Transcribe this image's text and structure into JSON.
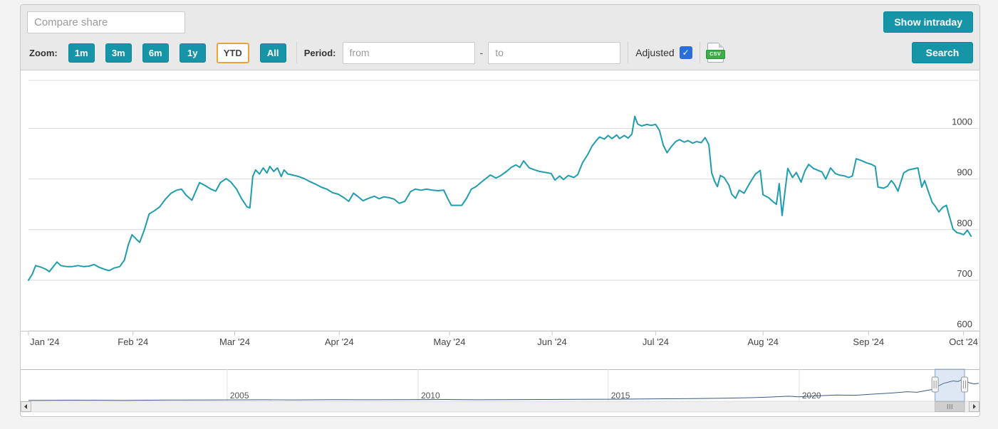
{
  "header": {
    "compare_placeholder": "Compare share",
    "show_intraday_label": "Show intraday"
  },
  "controls": {
    "zoom_label": "Zoom:",
    "zoom_buttons": [
      {
        "label": "1m",
        "selected": false
      },
      {
        "label": "3m",
        "selected": false
      },
      {
        "label": "6m",
        "selected": false
      },
      {
        "label": "1y",
        "selected": false
      },
      {
        "label": "YTD",
        "selected": true
      },
      {
        "label": "All",
        "selected": false
      }
    ],
    "period_label": "Period:",
    "from_placeholder": "from",
    "to_placeholder": "to",
    "range_separator": "-",
    "adjusted_label": "Adjusted",
    "adjusted_checked": true,
    "csv_icon_label": "CSV",
    "search_label": "Search"
  },
  "colors": {
    "accent_teal": "#1795a8",
    "ytd_border": "#e8a33c",
    "price_line": "#1f9daf",
    "gridline": "#d9d9d9",
    "axis_line": "#c6c6c6",
    "axis_text": "#444444",
    "nav_line": "#3b5a82",
    "nav_selection_fill": "rgba(125,165,215,0.25)",
    "nav_selection_edge": "#7f9fca",
    "checkbox_blue": "#2a6ed9",
    "csv_green": "#3fae49"
  },
  "chart_data": {
    "type": "line",
    "title": "",
    "xlabel": "",
    "ylabel": "",
    "ylim": [
      600,
      1095
    ],
    "y_ticks": [
      600,
      700,
      800,
      900,
      1000
    ],
    "x_ticks": [
      {
        "label": "Jan '24",
        "f": 0.0
      },
      {
        "label": "Feb '24",
        "f": 0.11
      },
      {
        "label": "Mar '24",
        "f": 0.217
      },
      {
        "label": "Apr '24",
        "f": 0.327
      },
      {
        "label": "May '24",
        "f": 0.443
      },
      {
        "label": "Jun '24",
        "f": 0.551
      },
      {
        "label": "Jul '24",
        "f": 0.66
      },
      {
        "label": "Aug '24",
        "f": 0.773
      },
      {
        "label": "Sep '24",
        "f": 0.884
      },
      {
        "label": "Oct '24",
        "f": 0.984
      }
    ],
    "series": [
      {
        "name": "share-price-ytd-2024",
        "color": "#1f9daf",
        "points": [
          [
            0.0,
            700
          ],
          [
            0.004,
            712
          ],
          [
            0.0075,
            729
          ],
          [
            0.013,
            726
          ],
          [
            0.019,
            721
          ],
          [
            0.022,
            717
          ],
          [
            0.03,
            736
          ],
          [
            0.034,
            729
          ],
          [
            0.04,
            727
          ],
          [
            0.046,
            727
          ],
          [
            0.052,
            729
          ],
          [
            0.058,
            727
          ],
          [
            0.064,
            728
          ],
          [
            0.069,
            731
          ],
          [
            0.075,
            725
          ],
          [
            0.081,
            721
          ],
          [
            0.085,
            719
          ],
          [
            0.09,
            724
          ],
          [
            0.096,
            727
          ],
          [
            0.101,
            740
          ],
          [
            0.105,
            770
          ],
          [
            0.109,
            790
          ],
          [
            0.114,
            780
          ],
          [
            0.117,
            775
          ],
          [
            0.122,
            800
          ],
          [
            0.127,
            831
          ],
          [
            0.133,
            838
          ],
          [
            0.138,
            845
          ],
          [
            0.144,
            860
          ],
          [
            0.15,
            872
          ],
          [
            0.156,
            878
          ],
          [
            0.161,
            880
          ],
          [
            0.166,
            868
          ],
          [
            0.172,
            858
          ],
          [
            0.177,
            880
          ],
          [
            0.18,
            893
          ],
          [
            0.186,
            887
          ],
          [
            0.192,
            880
          ],
          [
            0.197,
            876
          ],
          [
            0.202,
            893
          ],
          [
            0.208,
            901
          ],
          [
            0.213,
            894
          ],
          [
            0.219,
            880
          ],
          [
            0.224,
            862
          ],
          [
            0.23,
            845
          ],
          [
            0.233,
            843
          ],
          [
            0.236,
            905
          ],
          [
            0.239,
            918
          ],
          [
            0.243,
            910
          ],
          [
            0.247,
            922
          ],
          [
            0.251,
            912
          ],
          [
            0.254,
            925
          ],
          [
            0.258,
            915
          ],
          [
            0.262,
            922
          ],
          [
            0.266,
            905
          ],
          [
            0.269,
            918
          ],
          [
            0.273,
            910
          ],
          [
            0.278,
            908
          ],
          [
            0.284,
            905
          ],
          [
            0.29,
            901
          ],
          [
            0.296,
            895
          ],
          [
            0.302,
            890
          ],
          [
            0.308,
            884
          ],
          [
            0.314,
            880
          ],
          [
            0.32,
            873
          ],
          [
            0.326,
            870
          ],
          [
            0.332,
            863
          ],
          [
            0.337,
            856
          ],
          [
            0.342,
            872
          ],
          [
            0.347,
            865
          ],
          [
            0.352,
            857
          ],
          [
            0.358,
            862
          ],
          [
            0.364,
            866
          ],
          [
            0.369,
            861
          ],
          [
            0.374,
            865
          ],
          [
            0.38,
            863
          ],
          [
            0.385,
            860
          ],
          [
            0.39,
            852
          ],
          [
            0.396,
            856
          ],
          [
            0.402,
            875
          ],
          [
            0.407,
            880
          ],
          [
            0.413,
            878
          ],
          [
            0.419,
            880
          ],
          [
            0.425,
            878
          ],
          [
            0.431,
            877
          ],
          [
            0.437,
            878
          ],
          [
            0.441,
            862
          ],
          [
            0.445,
            848
          ],
          [
            0.45,
            848
          ],
          [
            0.456,
            848
          ],
          [
            0.461,
            862
          ],
          [
            0.466,
            880
          ],
          [
            0.471,
            885
          ],
          [
            0.476,
            893
          ],
          [
            0.482,
            902
          ],
          [
            0.486,
            908
          ],
          [
            0.492,
            902
          ],
          [
            0.497,
            907
          ],
          [
            0.503,
            915
          ],
          [
            0.508,
            923
          ],
          [
            0.513,
            928
          ],
          [
            0.517,
            923
          ],
          [
            0.521,
            936
          ],
          [
            0.527,
            922
          ],
          [
            0.533,
            918
          ],
          [
            0.538,
            915
          ],
          [
            0.544,
            913
          ],
          [
            0.55,
            911
          ],
          [
            0.554,
            898
          ],
          [
            0.559,
            906
          ],
          [
            0.563,
            899
          ],
          [
            0.568,
            907
          ],
          [
            0.574,
            903
          ],
          [
            0.578,
            909
          ],
          [
            0.583,
            932
          ],
          [
            0.589,
            950
          ],
          [
            0.593,
            965
          ],
          [
            0.598,
            977
          ],
          [
            0.601,
            983
          ],
          [
            0.606,
            979
          ],
          [
            0.61,
            986
          ],
          [
            0.614,
            980
          ],
          [
            0.619,
            987
          ],
          [
            0.622,
            980
          ],
          [
            0.627,
            986
          ],
          [
            0.631,
            981
          ],
          [
            0.635,
            989
          ],
          [
            0.638,
            1024
          ],
          [
            0.641,
            1009
          ],
          [
            0.645,
            1005
          ],
          [
            0.651,
            1008
          ],
          [
            0.655,
            1006
          ],
          [
            0.66,
            1008
          ],
          [
            0.664,
            996
          ],
          [
            0.668,
            967
          ],
          [
            0.672,
            952
          ],
          [
            0.676,
            963
          ],
          [
            0.681,
            974
          ],
          [
            0.685,
            978
          ],
          [
            0.69,
            973
          ],
          [
            0.694,
            976
          ],
          [
            0.699,
            971
          ],
          [
            0.703,
            974
          ],
          [
            0.708,
            972
          ],
          [
            0.712,
            982
          ],
          [
            0.716,
            968
          ],
          [
            0.719,
            912
          ],
          [
            0.722,
            896
          ],
          [
            0.725,
            885
          ],
          [
            0.728,
            907
          ],
          [
            0.732,
            903
          ],
          [
            0.737,
            888
          ],
          [
            0.74,
            870
          ],
          [
            0.744,
            862
          ],
          [
            0.748,
            878
          ],
          [
            0.753,
            872
          ],
          [
            0.759,
            892
          ],
          [
            0.765,
            910
          ],
          [
            0.77,
            917
          ],
          [
            0.773,
            869
          ],
          [
            0.779,
            863
          ],
          [
            0.783,
            856
          ],
          [
            0.787,
            850
          ],
          [
            0.79,
            891
          ],
          [
            0.793,
            828
          ],
          [
            0.799,
            921
          ],
          [
            0.804,
            903
          ],
          [
            0.808,
            913
          ],
          [
            0.813,
            894
          ],
          [
            0.817,
            916
          ],
          [
            0.821,
            929
          ],
          [
            0.826,
            921
          ],
          [
            0.831,
            917
          ],
          [
            0.835,
            914
          ],
          [
            0.839,
            900
          ],
          [
            0.844,
            922
          ],
          [
            0.849,
            911
          ],
          [
            0.853,
            908
          ],
          [
            0.859,
            906
          ],
          [
            0.863,
            903
          ],
          [
            0.867,
            906
          ],
          [
            0.871,
            940
          ],
          [
            0.876,
            937
          ],
          [
            0.882,
            932
          ],
          [
            0.887,
            929
          ],
          [
            0.891,
            925
          ],
          [
            0.894,
            884
          ],
          [
            0.9,
            882
          ],
          [
            0.904,
            886
          ],
          [
            0.908,
            897
          ],
          [
            0.911,
            890
          ],
          [
            0.915,
            876
          ],
          [
            0.921,
            912
          ],
          [
            0.926,
            918
          ],
          [
            0.931,
            920
          ],
          [
            0.936,
            922
          ],
          [
            0.94,
            884
          ],
          [
            0.943,
            897
          ],
          [
            0.947,
            875
          ],
          [
            0.951,
            854
          ],
          [
            0.954,
            847
          ],
          [
            0.958,
            835
          ],
          [
            0.962,
            844
          ],
          [
            0.966,
            848
          ],
          [
            0.969,
            827
          ],
          [
            0.973,
            801
          ],
          [
            0.977,
            794
          ],
          [
            0.98,
            793
          ],
          [
            0.984,
            790
          ],
          [
            0.988,
            799
          ],
          [
            0.992,
            787
          ]
        ]
      }
    ],
    "navigator": {
      "year_ticks": [
        {
          "label": "2005",
          "f": 0.209
        },
        {
          "label": "2010",
          "f": 0.41
        },
        {
          "label": "2015",
          "f": 0.61
        },
        {
          "label": "2020",
          "f": 0.811
        }
      ],
      "selection": [
        0.954,
        0.985
      ],
      "points": [
        [
          0.0,
          0.03
        ],
        [
          0.05,
          0.035
        ],
        [
          0.1,
          0.03
        ],
        [
          0.15,
          0.04
        ],
        [
          0.2,
          0.045
        ],
        [
          0.25,
          0.05
        ],
        [
          0.28,
          0.045
        ],
        [
          0.32,
          0.055
        ],
        [
          0.36,
          0.05
        ],
        [
          0.4,
          0.055
        ],
        [
          0.44,
          0.06
        ],
        [
          0.47,
          0.05
        ],
        [
          0.5,
          0.055
        ],
        [
          0.54,
          0.06
        ],
        [
          0.58,
          0.065
        ],
        [
          0.62,
          0.07
        ],
        [
          0.66,
          0.08
        ],
        [
          0.7,
          0.09
        ],
        [
          0.73,
          0.1
        ],
        [
          0.76,
          0.12
        ],
        [
          0.78,
          0.14
        ],
        [
          0.8,
          0.17
        ],
        [
          0.81,
          0.15
        ],
        [
          0.83,
          0.18
        ],
        [
          0.85,
          0.21
        ],
        [
          0.87,
          0.2
        ],
        [
          0.89,
          0.24
        ],
        [
          0.91,
          0.28
        ],
        [
          0.925,
          0.32
        ],
        [
          0.935,
          0.3
        ],
        [
          0.945,
          0.36
        ],
        [
          0.952,
          0.4
        ],
        [
          0.958,
          0.52
        ],
        [
          0.963,
          0.6
        ],
        [
          0.968,
          0.64
        ],
        [
          0.973,
          0.68
        ],
        [
          0.978,
          0.66
        ],
        [
          0.982,
          0.72
        ],
        [
          0.986,
          0.68
        ],
        [
          0.99,
          0.62
        ],
        [
          0.995,
          0.58
        ],
        [
          1.0,
          0.6
        ]
      ]
    },
    "legend": false,
    "grid": true
  }
}
